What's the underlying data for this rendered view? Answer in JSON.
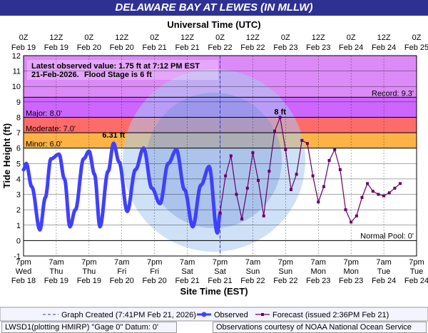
{
  "title": "DELAWARE BAY AT LEWES (IN MLLW)",
  "top_axis_title": "Universal Time (UTC)",
  "bottom_axis_title": "Site Time (EST)",
  "y_axis_title": "Tide Height (ft)",
  "top_ticks": [
    {
      "time": "0Z",
      "date": "Feb 19"
    },
    {
      "time": "12Z",
      "date": "Feb 19"
    },
    {
      "time": "0Z",
      "date": "Feb 20"
    },
    {
      "time": "12Z",
      "date": "Feb 20"
    },
    {
      "time": "0Z",
      "date": "Feb 21"
    },
    {
      "time": "12Z",
      "date": "Feb 21"
    },
    {
      "time": "0Z",
      "date": "Feb 22"
    },
    {
      "time": "12Z",
      "date": "Feb 22"
    },
    {
      "time": "0Z",
      "date": "Feb 23"
    },
    {
      "time": "12Z",
      "date": "Feb 23"
    },
    {
      "time": "0Z",
      "date": "Feb 24"
    },
    {
      "time": "12Z",
      "date": "Feb 24"
    },
    {
      "time": "0Z",
      "date": "Feb 25"
    }
  ],
  "bottom_ticks": [
    {
      "time": "7pm",
      "day": "Wed",
      "date": "Feb 18"
    },
    {
      "time": "7am",
      "day": "Thu",
      "date": "Feb 19"
    },
    {
      "time": "7pm",
      "day": "Thu",
      "date": "Feb 19"
    },
    {
      "time": "7am",
      "day": "Fri",
      "date": "Feb 20"
    },
    {
      "time": "7pm",
      "day": "Fri",
      "date": "Feb 20"
    },
    {
      "time": "7am",
      "day": "Sat",
      "date": "Feb 21"
    },
    {
      "time": "7pm",
      "day": "Sat",
      "date": "Feb 21"
    },
    {
      "time": "7am",
      "day": "Sun",
      "date": "Feb 22"
    },
    {
      "time": "7pm",
      "day": "Sun",
      "date": "Feb 22"
    },
    {
      "time": "7am",
      "day": "Mon",
      "date": "Feb 23"
    },
    {
      "time": "7pm",
      "day": "Mon",
      "date": "Feb 23"
    },
    {
      "time": "7am",
      "day": "Tue",
      "date": "Feb 24"
    },
    {
      "time": "7pm",
      "day": "Tue",
      "date": "Feb 24"
    }
  ],
  "info_box": {
    "line1": "Latest observed value: 1.75 ft at 7:12 PM EST",
    "line2_date": "21-Feb-2026.",
    "line2_flood": "Flood Stage is 6 ft"
  },
  "stage_labels": {
    "record": "Record: 9.3'",
    "major": "Major: 8.0'",
    "moderate": "Moderate: 7.0'",
    "minor": "Minor: 6.0'",
    "normal_pool": "Normal Pool: 0'"
  },
  "peak_labels": {
    "observed": "6.31 ft",
    "forecast": "8 ft"
  },
  "colors": {
    "title_bg": "#2e3192",
    "record_band": "#e9a8f0",
    "major_band": "#cc66ff",
    "moderate_band": "#ff6b6b",
    "minor_band": "#ffb347",
    "observed": "#4040ff",
    "forecast": "#660066"
  },
  "legend": {
    "created": "Graph Created (7:41PM Feb 21, 2026)",
    "observed": "Observed",
    "forecast": "Forecast (issued 2:36PM Feb 21)"
  },
  "footer": {
    "left": "LWSD1(plotting HMIRP) \"Gage 0\" Datum: 0'",
    "right": "Observations courtesy of NOAA National Ocean Service"
  },
  "chart_data": {
    "type": "line",
    "ylim": [
      -1,
      12
    ],
    "x_unit": "hours since 7pm EST Feb 18",
    "xlim": [
      0,
      144
    ],
    "thresholds": {
      "record": 9.3,
      "major": 8.0,
      "moderate": 7.0,
      "minor": 6.0,
      "normal_pool": 0
    },
    "series": [
      {
        "name": "Observed",
        "x": [
          0,
          1,
          3,
          6,
          8,
          10,
          13,
          15,
          17,
          19,
          22,
          24,
          26,
          28,
          31,
          33,
          35,
          38,
          41,
          44,
          47,
          50,
          53,
          56,
          59,
          62,
          65,
          68,
          71,
          72
        ],
        "y": [
          4.6,
          5.0,
          3.5,
          0.7,
          2.8,
          5.3,
          5.6,
          4.0,
          0.9,
          2.0,
          5.3,
          5.8,
          4.3,
          0.9,
          4.5,
          6.31,
          5.1,
          1.9,
          4.6,
          6.0,
          3.4,
          2.4,
          5.0,
          5.9,
          3.3,
          0.9,
          3.6,
          4.8,
          0.5,
          1.75
        ]
      },
      {
        "name": "Forecast",
        "x": [
          72,
          74,
          76,
          78,
          80,
          82,
          84,
          86,
          88,
          90,
          92,
          94,
          96,
          98,
          100,
          102,
          104,
          106,
          108,
          110,
          112,
          114,
          116,
          118,
          120,
          122,
          124,
          126,
          128,
          130,
          132,
          134,
          136,
          138
        ],
        "y": [
          1.8,
          4.2,
          5.5,
          3.0,
          1.4,
          3.4,
          5.7,
          3.9,
          1.6,
          4.5,
          7.1,
          8.0,
          5.9,
          3.3,
          4.3,
          6.5,
          6.3,
          4.2,
          2.5,
          3.5,
          5.2,
          5.9,
          4.6,
          2.0,
          1.2,
          1.6,
          2.8,
          3.7,
          3.2,
          3.0,
          2.9,
          3.1,
          3.4,
          3.7
        ]
      }
    ]
  }
}
